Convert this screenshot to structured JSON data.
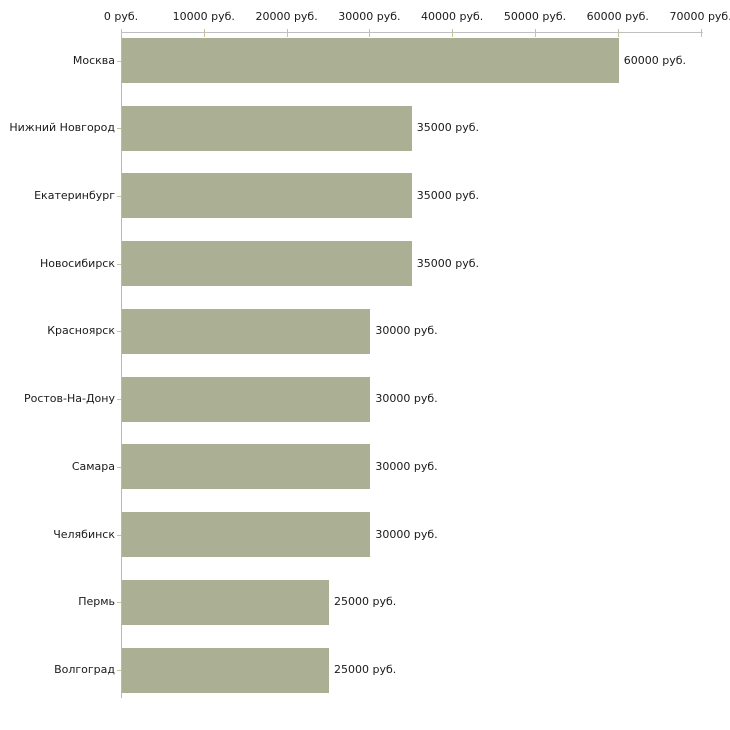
{
  "chart_data": {
    "type": "bar",
    "orientation": "horizontal",
    "title": "",
    "xlabel": "",
    "ylabel": "",
    "grid": "off",
    "legend": "none",
    "xlim": [
      0,
      70000
    ],
    "x_ticks": [
      0,
      10000,
      20000,
      30000,
      40000,
      50000,
      60000,
      70000
    ],
    "x_tick_labels": [
      "0 руб.",
      "10000 руб.",
      "20000 руб.",
      "30000 руб.",
      "40000 руб.",
      "50000 руб.",
      "60000 руб.",
      "70000 руб."
    ],
    "categories": [
      "Москва",
      "Нижний Новгород",
      "Екатеринбург",
      "Новосибирск",
      "Красноярск",
      "Ростов-На-Дону",
      "Самара",
      "Челябинск",
      "Пермь",
      "Волгоград"
    ],
    "values": [
      60000,
      35000,
      35000,
      35000,
      30000,
      30000,
      30000,
      30000,
      25000,
      25000
    ],
    "value_labels": [
      "60000 руб.",
      "35000 руб.",
      "35000 руб.",
      "35000 руб.",
      "30000 руб.",
      "30000 руб.",
      "30000 руб.",
      "30000 руб.",
      "25000 руб.",
      "25000 руб."
    ],
    "unit_suffix": " руб.",
    "colors": {
      "bar": "#abb095",
      "axis_line": "#c0c0c0",
      "tick": "#c9c29b",
      "text": "#1a1a1a",
      "background": "#ffffff"
    }
  }
}
